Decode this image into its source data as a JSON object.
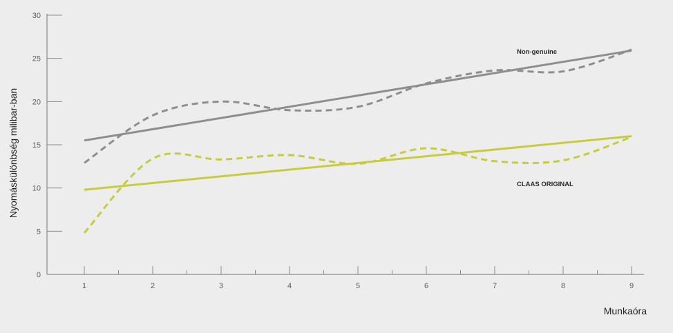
{
  "chart_data": {
    "type": "line",
    "title": "",
    "xlabel": "Munkaóra",
    "ylabel": "Nyomáskülönbség milibar-ban",
    "x": [
      1,
      2,
      3,
      4,
      5,
      6,
      7,
      8,
      9
    ],
    "xticks": [
      "1",
      "2",
      "3",
      "4",
      "5",
      "6",
      "7",
      "8",
      "9"
    ],
    "yticks": [
      "0",
      "5",
      "10",
      "15",
      "20",
      "25",
      "30"
    ],
    "xlim": [
      1,
      9
    ],
    "ylim": [
      0,
      30
    ],
    "grid": false,
    "legend": "none",
    "series": [
      {
        "name": "Non-genuine",
        "color": "#8e8e8e",
        "style": "dashed",
        "values": [
          12.9,
          18.4,
          20.0,
          19.0,
          19.4,
          22.1,
          23.6,
          23.5,
          26.0
        ]
      },
      {
        "color": "#8e8e8e",
        "style": "solid",
        "values": [
          15.5,
          16.8,
          18.1,
          19.3,
          20.6,
          21.9,
          23.1,
          24.4,
          25.9
        ]
      },
      {
        "name": "CLAAS ORIGINAL",
        "color": "#c6cc3e",
        "style": "dashed",
        "values": [
          4.8,
          13.4,
          13.3,
          13.8,
          12.8,
          14.6,
          13.1,
          13.2,
          15.9
        ]
      },
      {
        "color": "#c6cc3e",
        "style": "solid",
        "values": [
          9.8,
          10.6,
          11.4,
          12.2,
          12.9,
          13.7,
          14.5,
          15.2,
          16.0
        ]
      }
    ]
  }
}
